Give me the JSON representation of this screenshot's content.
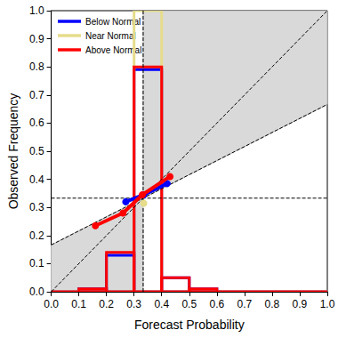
{
  "chart_data": {
    "type": "reliability",
    "x_label": "Forecast Probability",
    "y_label": "Observed Frequency",
    "xlim": [
      0,
      1
    ],
    "ylim": [
      0,
      1
    ],
    "xticks": [
      {
        "value": 0,
        "label": "0.0"
      },
      {
        "value": 0.1,
        "label": "0.1"
      },
      {
        "value": 0.2,
        "label": "0.2"
      },
      {
        "value": 0.3,
        "label": "0.3"
      },
      {
        "value": 0.4,
        "label": "0.4"
      },
      {
        "value": 0.5,
        "label": "0.5"
      },
      {
        "value": 0.6,
        "label": "0.6"
      },
      {
        "value": 0.7,
        "label": "0.7"
      },
      {
        "value": 0.8,
        "label": "0.8"
      },
      {
        "value": 0.9,
        "label": "0.9"
      },
      {
        "value": 1,
        "label": "1.0"
      }
    ],
    "yticks": [
      {
        "value": 0,
        "label": "0.0"
      },
      {
        "value": 0.1,
        "label": "0.1"
      },
      {
        "value": 0.2,
        "label": "0.2"
      },
      {
        "value": 0.3,
        "label": "0.3"
      },
      {
        "value": 0.4,
        "label": "0.4"
      },
      {
        "value": 0.5,
        "label": "0.5"
      },
      {
        "value": 0.6,
        "label": "0.6"
      },
      {
        "value": 0.7,
        "label": "0.7"
      },
      {
        "value": 0.8,
        "label": "0.8"
      },
      {
        "value": 0.9,
        "label": "0.9"
      },
      {
        "value": 1,
        "label": "1.0"
      }
    ],
    "reference_frequency": 0.333,
    "bins": [
      0,
      0.1,
      0.2,
      0.3,
      0.4,
      0.5,
      0.6,
      0.7,
      0.8,
      0.9,
      1
    ],
    "legend": "upper left",
    "series": [
      {
        "name": "Below Normal",
        "color": "#0000ff",
        "x": [
          0.27,
          0.335,
          0.42
        ],
        "values": [
          0.32,
          0.345,
          0.385
        ],
        "counts": [
          0,
          0.01,
          0.13,
          0.79,
          0.05,
          0.01,
          0,
          0,
          0,
          0
        ]
      },
      {
        "name": "Near Normal",
        "color": "#e6dc8a",
        "x": [
          0.335
        ],
        "values": [
          0.315
        ],
        "counts": [
          0,
          0,
          0,
          1,
          0,
          0,
          0,
          0,
          0,
          0
        ]
      },
      {
        "name": "Above Normal",
        "color": "#ff0000",
        "x": [
          0.16,
          0.26,
          0.33,
          0.43
        ],
        "values": [
          0.235,
          0.28,
          0.345,
          0.41
        ],
        "counts": [
          0,
          0.01,
          0.14,
          0.8,
          0.05,
          0.01,
          0,
          0,
          0,
          0
        ]
      }
    ]
  }
}
